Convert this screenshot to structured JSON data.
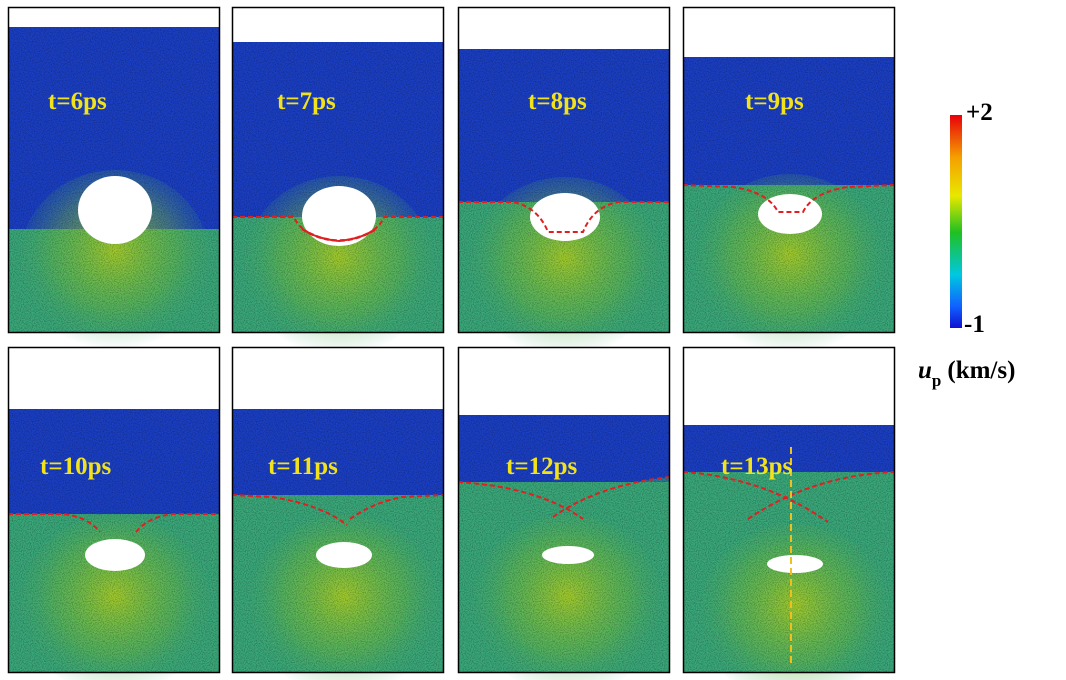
{
  "panels": [
    {
      "label": "t=6ps"
    },
    {
      "label": "t=7ps"
    },
    {
      "label": "t=8ps"
    },
    {
      "label": "t=9ps"
    },
    {
      "label": "t=10ps"
    },
    {
      "label": "t=11ps"
    },
    {
      "label": "t=12ps"
    },
    {
      "label": "t=13ps"
    }
  ],
  "colorbar": {
    "max_label": "+2",
    "min_label": "-1",
    "quantity": "u",
    "subscript": "p",
    "unit": "(km/s)"
  }
}
